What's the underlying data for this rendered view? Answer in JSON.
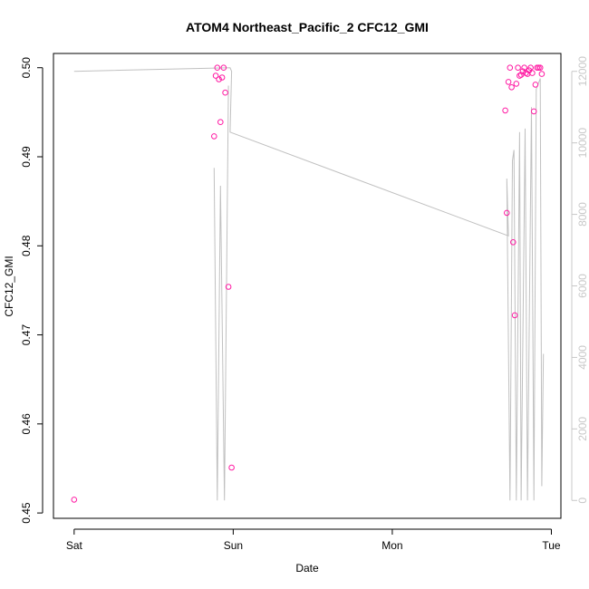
{
  "chart_data": {
    "type": "scatter",
    "title": "ATOM4 Northeast_Pacific_2 CFC12_GMI",
    "xlabel": "Date",
    "ylabel": "CFC12_GMI",
    "x_axis": {
      "range_days": [
        -0.13,
        3.06
      ],
      "ticks": [
        {
          "value": 0,
          "label": "Sat"
        },
        {
          "value": 1,
          "label": "Sun"
        },
        {
          "value": 2,
          "label": "Mon"
        },
        {
          "value": 3,
          "label": "Tue"
        }
      ]
    },
    "y_axis": {
      "range": [
        0.4494,
        0.5016
      ],
      "ticks": [
        0.45,
        0.46,
        0.47,
        0.48,
        0.49,
        0.5
      ],
      "tick_labels": [
        "0.45",
        "0.46",
        "0.47",
        "0.48",
        "0.49",
        "0.50"
      ]
    },
    "y2_axis": {
      "color": "#c8c8c8",
      "range": [
        -500,
        12500
      ],
      "ticks": [
        0,
        2000,
        4000,
        6000,
        8000,
        10000,
        12000
      ],
      "tick_labels": [
        "0",
        "2000",
        "4000",
        "6000",
        "8000",
        "10000",
        "12000"
      ]
    },
    "series": [
      {
        "type": "scatter",
        "axis": "left",
        "color": "#ff1aa3",
        "points": [
          {
            "x": 0.0,
            "y": 0.4515
          },
          {
            "x": 0.88,
            "y": 0.4923
          },
          {
            "x": 0.89,
            "y": 0.4991
          },
          {
            "x": 0.9,
            "y": 0.5
          },
          {
            "x": 0.91,
            "y": 0.4987
          },
          {
            "x": 0.92,
            "y": 0.4939
          },
          {
            "x": 0.93,
            "y": 0.4989
          },
          {
            "x": 0.94,
            "y": 0.5
          },
          {
            "x": 0.95,
            "y": 0.4972
          },
          {
            "x": 0.97,
            "y": 0.4754
          },
          {
            "x": 0.99,
            "y": 0.4551
          },
          {
            "x": 2.71,
            "y": 0.4952
          },
          {
            "x": 2.72,
            "y": 0.4837
          },
          {
            "x": 2.73,
            "y": 0.4984
          },
          {
            "x": 2.74,
            "y": 0.5
          },
          {
            "x": 2.75,
            "y": 0.4978
          },
          {
            "x": 2.76,
            "y": 0.4804
          },
          {
            "x": 2.77,
            "y": 0.4722
          },
          {
            "x": 2.78,
            "y": 0.4982
          },
          {
            "x": 2.79,
            "y": 0.5
          },
          {
            "x": 2.8,
            "y": 0.4991
          },
          {
            "x": 2.81,
            "y": 0.4992
          },
          {
            "x": 2.82,
            "y": 0.4996
          },
          {
            "x": 2.83,
            "y": 0.5
          },
          {
            "x": 2.84,
            "y": 0.4994
          },
          {
            "x": 2.85,
            "y": 0.4993
          },
          {
            "x": 2.86,
            "y": 0.4997
          },
          {
            "x": 2.87,
            "y": 0.5
          },
          {
            "x": 2.88,
            "y": 0.4994
          },
          {
            "x": 2.89,
            "y": 0.4951
          },
          {
            "x": 2.9,
            "y": 0.4981
          },
          {
            "x": 2.91,
            "y": 0.5
          },
          {
            "x": 2.92,
            "y": 0.5
          },
          {
            "x": 2.93,
            "y": 0.5
          },
          {
            "x": 2.94,
            "y": 0.4993
          }
        ]
      },
      {
        "type": "line",
        "axis": "right",
        "color": "#c0c0c0",
        "points": [
          {
            "x": 0.0,
            "y": 12000
          },
          {
            "x": 0.98,
            "y": 12100
          },
          {
            "x": 0.99,
            "y": 12000
          },
          {
            "x": 0.98,
            "y": 10300
          },
          {
            "x": 2.73,
            "y": 7400
          },
          {
            "x": 2.72,
            "y": 9000
          },
          {
            "x": 2.74,
            "y": 0
          },
          {
            "x": 2.755,
            "y": 9500
          },
          {
            "x": 2.765,
            "y": 9800
          },
          {
            "x": 2.78,
            "y": 0
          },
          {
            "x": 2.8,
            "y": 10300
          },
          {
            "x": 2.81,
            "y": 0
          },
          {
            "x": 2.835,
            "y": 10400
          },
          {
            "x": 2.85,
            "y": 0
          },
          {
            "x": 2.875,
            "y": 11000
          },
          {
            "x": 2.89,
            "y": 0
          },
          {
            "x": 2.905,
            "y": 11500
          },
          {
            "x": 2.93,
            "y": 11800
          },
          {
            "x": 2.94,
            "y": 400
          },
          {
            "x": 2.95,
            "y": 4100
          }
        ]
      },
      {
        "type": "line",
        "axis": "right",
        "color": "#c0c0c0",
        "points": [
          {
            "x": 0.88,
            "y": 9300
          },
          {
            "x": 0.9,
            "y": 0
          },
          {
            "x": 0.92,
            "y": 8800
          },
          {
            "x": 0.945,
            "y": 0
          },
          {
            "x": 0.97,
            "y": 11600
          }
        ]
      }
    ],
    "grid": false,
    "legend": "none"
  }
}
